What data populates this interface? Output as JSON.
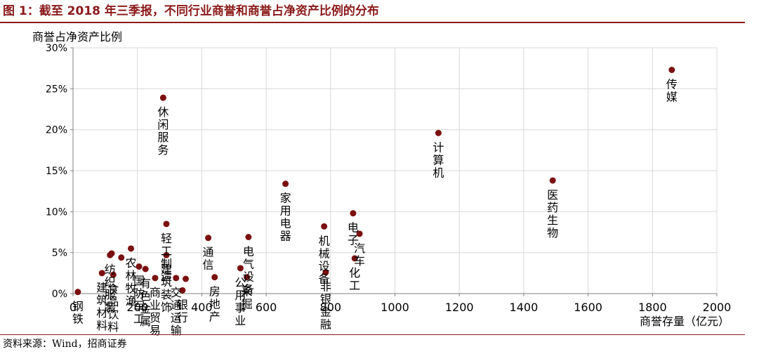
{
  "figure_title": "图 1：截至 2018 年三季报，不同行业商誉和商誉占净资产比例的分布",
  "source_note": "资料来源：Wind，招商证券",
  "colors": {
    "title": "#8b1a1a",
    "marker": "#7a1010",
    "grid": "#d9d9d9",
    "axis": "#808080"
  },
  "chart_data": {
    "type": "scatter",
    "xlabel": "商誉存量（亿元）",
    "ylabel": "商誉占净资产比例",
    "xlim": [
      0,
      2000
    ],
    "ylim": [
      0,
      30
    ],
    "x_ticks": [
      0,
      200,
      400,
      600,
      800,
      1000,
      1200,
      1400,
      1600,
      1800,
      2000
    ],
    "y_ticks": [
      0,
      5,
      10,
      15,
      20,
      25,
      30
    ],
    "x_tick_labels": [
      "0",
      "200",
      "400",
      "600",
      "800",
      "1000",
      "1200",
      "1400",
      "1600",
      "1800",
      "2000"
    ],
    "y_tick_labels": [
      "0%",
      "5%",
      "10%",
      "15%",
      "20%",
      "25%",
      "30%"
    ],
    "grid": true,
    "points": [
      {
        "label": "钢铁",
        "x": 15,
        "y": 0.2
      },
      {
        "label": "建筑材料",
        "x": 90,
        "y": 2.5
      },
      {
        "label": "食品饮料",
        "x": 125,
        "y": 2.3
      },
      {
        "label": "纺织服装",
        "x": 115,
        "y": 4.7
      },
      {
        "label": "",
        "x": 120,
        "y": 4.9
      },
      {
        "label": "",
        "x": 150,
        "y": 4.4
      },
      {
        "label": "农林牧渔",
        "x": 180,
        "y": 5.5
      },
      {
        "label": "国防军工",
        "x": 205,
        "y": 3.3
      },
      {
        "label": "有色金属",
        "x": 225,
        "y": 3.0
      },
      {
        "label": "商业贸易",
        "x": 255,
        "y": 1.9
      },
      {
        "label": "休闲服务",
        "x": 280,
        "y": 23.9
      },
      {
        "label": "轻工制造",
        "x": 290,
        "y": 8.5
      },
      {
        "label": "建筑装饰",
        "x": 290,
        "y": 4.7
      },
      {
        "label": "交通运输",
        "x": 320,
        "y": 1.9
      },
      {
        "label": "银行",
        "x": 340,
        "y": 0.4
      },
      {
        "label": "",
        "x": 350,
        "y": 1.8
      },
      {
        "label": "通信",
        "x": 420,
        "y": 6.8
      },
      {
        "label": "房地产",
        "x": 440,
        "y": 2.0
      },
      {
        "label": "公用事业",
        "x": 520,
        "y": 3.1
      },
      {
        "label": "电气设备",
        "x": 545,
        "y": 6.9
      },
      {
        "label": "采掘",
        "x": 540,
        "y": 2.0
      },
      {
        "label": "家用电器",
        "x": 660,
        "y": 13.4
      },
      {
        "label": "机械设备",
        "x": 780,
        "y": 8.2
      },
      {
        "label": "非银金融",
        "x": 785,
        "y": 2.6
      },
      {
        "label": "电子",
        "x": 870,
        "y": 9.8
      },
      {
        "label": "汽车",
        "x": 890,
        "y": 7.3
      },
      {
        "label": "化工",
        "x": 875,
        "y": 4.3
      },
      {
        "label": "计算机",
        "x": 1135,
        "y": 19.6
      },
      {
        "label": "医药生物",
        "x": 1490,
        "y": 13.8
      },
      {
        "label": "传媒",
        "x": 1860,
        "y": 27.3
      }
    ]
  }
}
